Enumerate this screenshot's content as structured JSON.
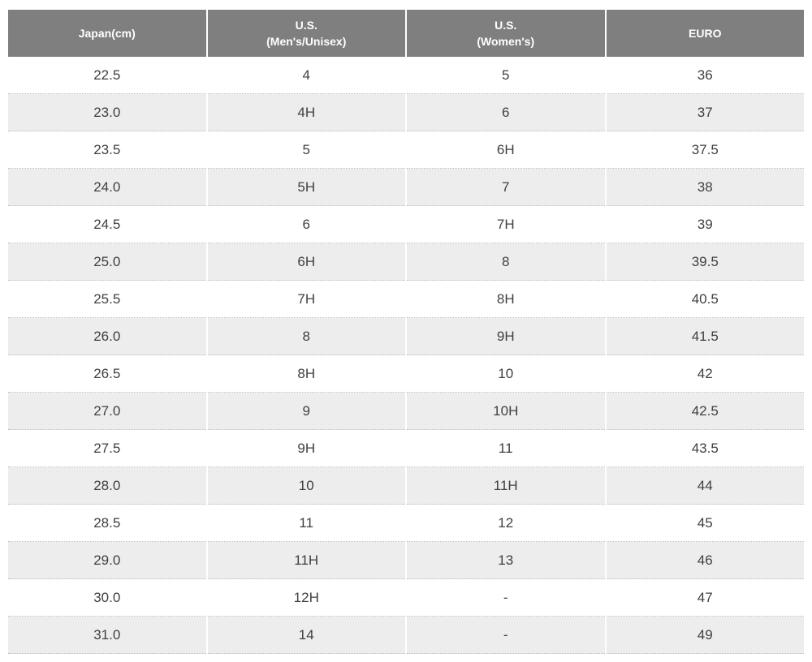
{
  "chart_data": {
    "type": "table",
    "columns": [
      "Japan(cm)",
      "U.S.\n(Men's/Unisex)",
      "U.S.\n(Women's)",
      "EURO"
    ],
    "rows": [
      [
        "22.5",
        "4",
        "5",
        "36"
      ],
      [
        "23.0",
        "4H",
        "6",
        "37"
      ],
      [
        "23.5",
        "5",
        "6H",
        "37.5"
      ],
      [
        "24.0",
        "5H",
        "7",
        "38"
      ],
      [
        "24.5",
        "6",
        "7H",
        "39"
      ],
      [
        "25.0",
        "6H",
        "8",
        "39.5"
      ],
      [
        "25.5",
        "7H",
        "8H",
        "40.5"
      ],
      [
        "26.0",
        "8",
        "9H",
        "41.5"
      ],
      [
        "26.5",
        "8H",
        "10",
        "42"
      ],
      [
        "27.0",
        "9",
        "10H",
        "42.5"
      ],
      [
        "27.5",
        "9H",
        "11",
        "43.5"
      ],
      [
        "28.0",
        "10",
        "11H",
        "44"
      ],
      [
        "28.5",
        "11",
        "12",
        "45"
      ],
      [
        "29.0",
        "11H",
        "13",
        "46"
      ],
      [
        "30.0",
        "12H",
        "-",
        "47"
      ],
      [
        "31.0",
        "14",
        "-",
        "49"
      ]
    ],
    "layout_hints": {
      "striped_rows": true,
      "stripe_pattern": "odd-white-even-gray",
      "row_separator": "dotted"
    }
  },
  "colors": {
    "header_bg": "#7f7f7f",
    "header_text": "#ffffff",
    "row_stripe": "#ededed",
    "body_text": "#404040",
    "row_border": "#bdbdbd"
  }
}
